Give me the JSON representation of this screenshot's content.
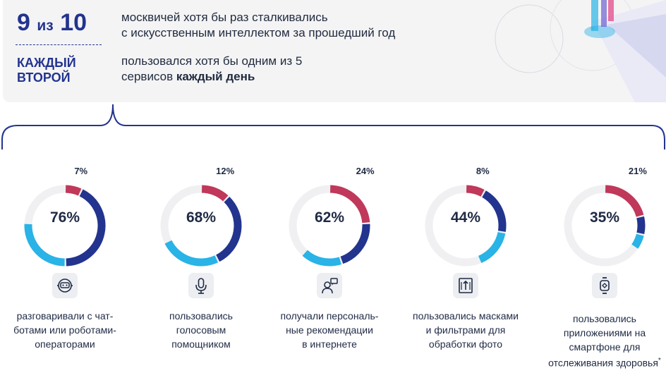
{
  "header": {
    "stat1": {
      "number": "9",
      "connector": "из",
      "total": "10",
      "text_line1": "москвичей хотя бы раз сталкивались",
      "text_line2": "с искусственным интеллектом за прошедший год"
    },
    "stat2": {
      "label_line1": "КАЖДЫЙ",
      "label_line2": "ВТОРОЙ",
      "text_line1": "пользовался хотя бы одним из 5",
      "text_prefix": "сервисов ",
      "text_bold": "каждый день"
    }
  },
  "colors": {
    "dark_blue": "#22348e",
    "light_blue": "#29b3e6",
    "crimson": "#c0385a",
    "track": "#f0f0f2"
  },
  "chart_data": {
    "type": "donut",
    "items": [
      {
        "main_value": 76,
        "main_label": "76%",
        "top_value": 7,
        "top_label": "7%",
        "caption": [
          "разговаривали с чат-",
          "ботами или роботами-",
          "операторами"
        ],
        "icon": "robot-icon"
      },
      {
        "main_value": 68,
        "main_label": "68%",
        "top_value": 12,
        "top_label": "12%",
        "caption": [
          "пользовались",
          "голосовым",
          "помощником"
        ],
        "icon": "microphone-icon"
      },
      {
        "main_value": 62,
        "main_label": "62%",
        "top_value": 24,
        "top_label": "24%",
        "caption": [
          "получали персональ-",
          "ные рекомендации",
          "в интернете"
        ],
        "icon": "user-recommendation-icon"
      },
      {
        "main_value": 44,
        "main_label": "44%",
        "top_value": 8,
        "top_label": "8%",
        "caption": [
          "пользовались масками",
          "и фильтрами для",
          "обработки фото"
        ],
        "icon": "photo-filter-icon"
      },
      {
        "main_value": 35,
        "main_label": "35%",
        "top_value": 21,
        "top_label": "21%",
        "caption": [
          "пользовались",
          "приложениями на",
          "смартфоне для",
          "отслеживания здоровья"
        ],
        "caption_mark": "*",
        "icon": "smartwatch-icon"
      }
    ]
  }
}
